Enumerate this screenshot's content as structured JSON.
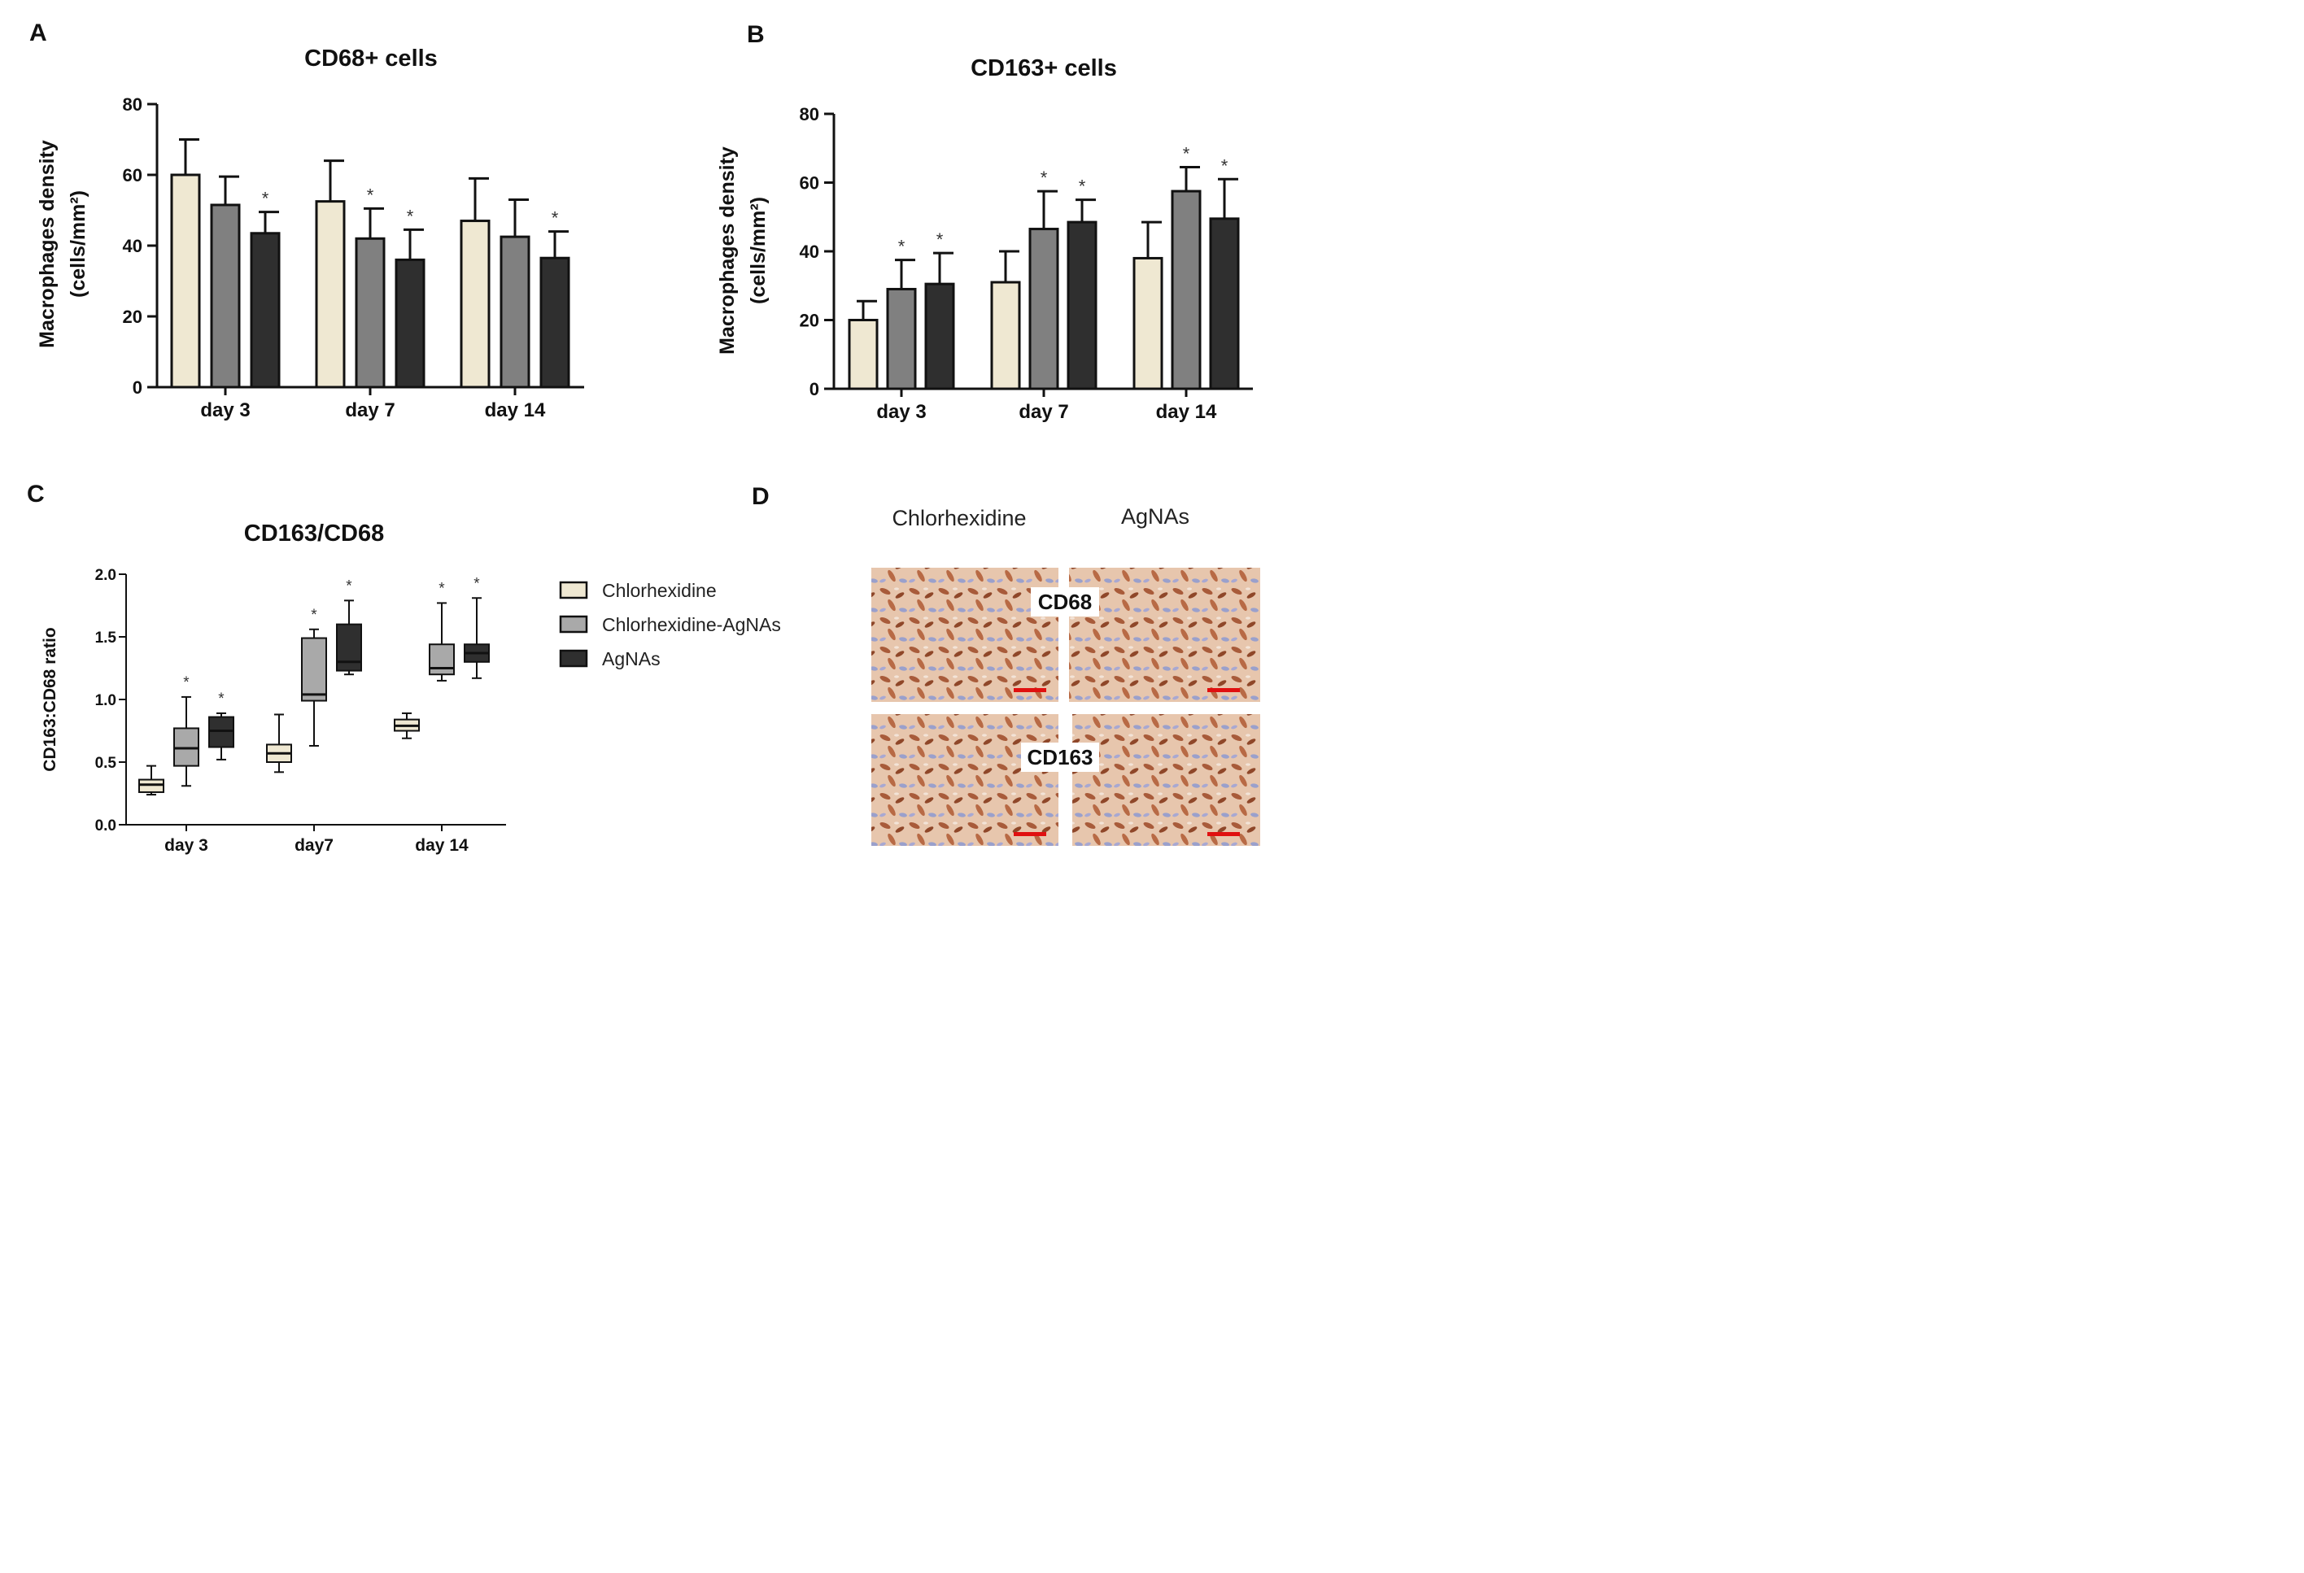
{
  "colors": {
    "chlorhexidine": "#efe8d2",
    "chlorhexidine_agnas_bar": "#808080",
    "chlorhexidine_agnas_box": "#a9a9a9",
    "agnas": "#2f2f2f",
    "scale_bar": "#e01010"
  },
  "legend": {
    "items": [
      "Chlorhexidine",
      "Chlorhexidine-AgNAs",
      "AgNAs"
    ]
  },
  "chart_data": [
    {
      "panel": "A",
      "type": "bar",
      "title": "CD68+ cells",
      "ylabel_line1": "Macrophages density",
      "ylabel_line2": "(cells/mm²)",
      "ylim": [
        0,
        80
      ],
      "yticks": [
        "0",
        "20",
        "40",
        "60",
        "80"
      ],
      "categories": [
        "day 3",
        "day 7",
        "day 14"
      ],
      "series": [
        {
          "name": "Chlorhexidine",
          "values": [
            60,
            52.5,
            47
          ],
          "errors": [
            10,
            11.5,
            12
          ]
        },
        {
          "name": "Chlorhexidine-AgNAs",
          "values": [
            51.5,
            42,
            42.5
          ],
          "errors": [
            8,
            8.5,
            10.5
          ]
        },
        {
          "name": "AgNAs",
          "values": [
            43.5,
            36,
            36.5
          ],
          "errors": [
            6,
            8.5,
            7.5
          ]
        }
      ],
      "significance": [
        {
          "category": "day 3",
          "series": "AgNAs",
          "mark": "*"
        },
        {
          "category": "day 7",
          "series": "Chlorhexidine-AgNAs",
          "mark": "*"
        },
        {
          "category": "day 7",
          "series": "AgNAs",
          "mark": "*"
        },
        {
          "category": "day 14",
          "series": "AgNAs",
          "mark": "*"
        }
      ]
    },
    {
      "panel": "B",
      "type": "bar",
      "title": "CD163+ cells",
      "ylabel_line1": "Macrophages density",
      "ylabel_line2": "(cells/mm²)",
      "ylim": [
        0,
        80
      ],
      "yticks": [
        "0",
        "20",
        "40",
        "60",
        "80"
      ],
      "categories": [
        "day 3",
        "day 7",
        "day 14"
      ],
      "series": [
        {
          "name": "Chlorhexidine",
          "values": [
            20,
            31,
            38
          ],
          "errors": [
            5.5,
            9,
            10.5
          ]
        },
        {
          "name": "Chlorhexidine-AgNAs",
          "values": [
            29,
            46.5,
            57.5
          ],
          "errors": [
            8.5,
            11,
            7
          ]
        },
        {
          "name": "AgNAs",
          "values": [
            30.5,
            48.5,
            49.5
          ],
          "errors": [
            9,
            6.5,
            11.5
          ]
        }
      ],
      "significance": [
        {
          "category": "day 3",
          "series": "Chlorhexidine-AgNAs",
          "mark": "*"
        },
        {
          "category": "day 3",
          "series": "AgNAs",
          "mark": "*"
        },
        {
          "category": "day 7",
          "series": "Chlorhexidine-AgNAs",
          "mark": "*"
        },
        {
          "category": "day 7",
          "series": "AgNAs",
          "mark": "*"
        },
        {
          "category": "day 14",
          "series": "Chlorhexidine-AgNAs",
          "mark": "*"
        },
        {
          "category": "day 14",
          "series": "AgNAs",
          "mark": "*"
        }
      ]
    },
    {
      "panel": "C",
      "type": "box",
      "title": "CD163/CD68",
      "ylabel": "CD163:CD68 ratio",
      "ylim": [
        0,
        2.0
      ],
      "yticks": [
        "0.0",
        "0.5",
        "1.0",
        "1.5",
        "2.0"
      ],
      "categories": [
        "day 3",
        "day7",
        "day 14"
      ],
      "series": [
        {
          "name": "Chlorhexidine",
          "boxes": [
            {
              "min": 0.24,
              "q1": 0.26,
              "median": 0.32,
              "q3": 0.36,
              "max": 0.47
            },
            {
              "min": 0.42,
              "q1": 0.5,
              "median": 0.57,
              "q3": 0.64,
              "max": 0.88
            },
            {
              "min": 0.69,
              "q1": 0.75,
              "median": 0.79,
              "q3": 0.84,
              "max": 0.89
            }
          ]
        },
        {
          "name": "Chlorhexidine-AgNAs",
          "boxes": [
            {
              "min": 0.31,
              "q1": 0.47,
              "median": 0.61,
              "q3": 0.77,
              "max": 1.02
            },
            {
              "min": 0.63,
              "q1": 0.99,
              "median": 1.04,
              "q3": 1.49,
              "max": 1.56
            },
            {
              "min": 1.15,
              "q1": 1.2,
              "median": 1.25,
              "q3": 1.44,
              "max": 1.77
            }
          ]
        },
        {
          "name": "AgNAs",
          "boxes": [
            {
              "min": 0.52,
              "q1": 0.62,
              "median": 0.75,
              "q3": 0.86,
              "max": 0.89
            },
            {
              "min": 1.2,
              "q1": 1.23,
              "median": 1.3,
              "q3": 1.6,
              "max": 1.79
            },
            {
              "min": 1.17,
              "q1": 1.3,
              "median": 1.37,
              "q3": 1.44,
              "max": 1.81
            }
          ]
        }
      ],
      "significance": [
        {
          "category": "day 3",
          "series": "Chlorhexidine-AgNAs",
          "mark": "*"
        },
        {
          "category": "day 3",
          "series": "AgNAs",
          "mark": "*"
        },
        {
          "category": "day7",
          "series": "Chlorhexidine-AgNAs",
          "mark": "*"
        },
        {
          "category": "day7",
          "series": "AgNAs",
          "mark": "*"
        },
        {
          "category": "day 14",
          "series": "Chlorhexidine-AgNAs",
          "mark": "*"
        },
        {
          "category": "day 14",
          "series": "AgNAs",
          "mark": "*"
        }
      ]
    }
  ],
  "panel_d": {
    "letter": "D",
    "column_headers": [
      "Chlorhexidine",
      "AgNAs"
    ],
    "row_labels": [
      "CD68",
      "CD163"
    ]
  }
}
